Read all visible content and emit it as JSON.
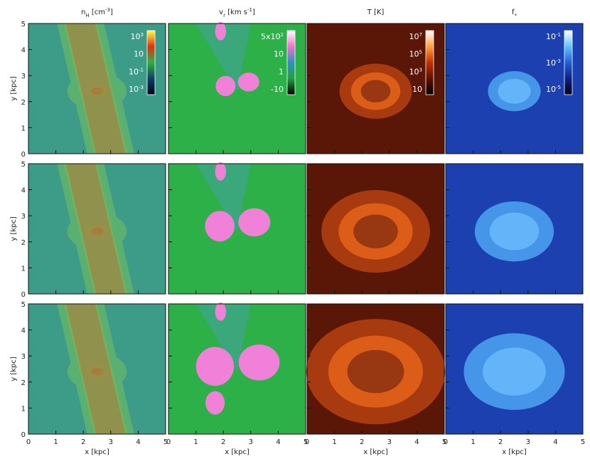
{
  "columns": [
    {
      "title": [
        {
          "text": "n"
        },
        {
          "text": "H",
          "style": "sub"
        },
        {
          "text": " [cm"
        },
        {
          "text": "-3",
          "style": "sup"
        },
        {
          "text": "]"
        }
      ],
      "colorbar": [
        [
          {
            "text": "10"
          },
          {
            "text": "3",
            "style": "sup"
          }
        ],
        [
          {
            "text": "10"
          }
        ],
        [
          {
            "text": "10"
          },
          {
            "text": "-1",
            "style": "sup"
          }
        ],
        [
          {
            "text": "10"
          },
          {
            "text": "-3",
            "style": "sup"
          }
        ]
      ]
    },
    {
      "title": [
        {
          "text": "v"
        },
        {
          "text": "r",
          "style": "sub"
        },
        {
          "text": " [km s"
        },
        {
          "text": "-1",
          "style": "sup"
        },
        {
          "text": "]"
        }
      ],
      "colorbar": [
        [
          {
            "text": "5x10"
          },
          {
            "text": "2",
            "style": "sup"
          }
        ],
        [
          {
            "text": "10"
          }
        ],
        [
          {
            "text": "1"
          }
        ],
        [
          {
            "text": "-10"
          }
        ]
      ]
    },
    {
      "title": [
        {
          "text": "T [K]"
        }
      ],
      "colorbar": [
        [
          {
            "text": "10"
          },
          {
            "text": "7",
            "style": "sup"
          }
        ],
        [
          {
            "text": "10"
          },
          {
            "text": "5",
            "style": "sup"
          }
        ],
        [
          {
            "text": "10"
          },
          {
            "text": "3",
            "style": "sup"
          }
        ],
        [
          {
            "text": "10"
          }
        ]
      ]
    },
    {
      "title": [
        {
          "text": "f"
        },
        {
          "text": "*",
          "style": "sub"
        }
      ],
      "colorbar": [
        [
          {
            "text": "10"
          },
          {
            "text": "-1",
            "style": "sup"
          }
        ],
        [
          {
            "text": "10"
          },
          {
            "text": "-3",
            "style": "sup"
          }
        ],
        [
          {
            "text": "10"
          },
          {
            "text": "-5",
            "style": "sup"
          }
        ]
      ]
    }
  ],
  "axes": {
    "xlabel": "x [kpc]",
    "ylabel": "y [kpc]",
    "xlim": [
      0,
      5
    ],
    "ylim": [
      0,
      5
    ],
    "xticks": [
      0,
      1,
      2,
      3,
      4,
      5
    ],
    "yticks": [
      0,
      1,
      2,
      3,
      4,
      5
    ]
  }
}
